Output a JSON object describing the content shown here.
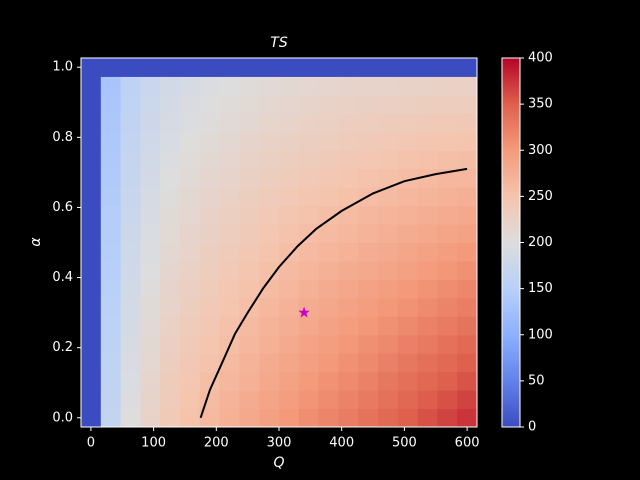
{
  "chart_data": {
    "type": "heatmap",
    "title": "TS",
    "x_label": "Q",
    "y_label": "α",
    "x": [
      0,
      31.58,
      63.16,
      94.74,
      126.32,
      157.89,
      189.47,
      221.05,
      252.63,
      284.21,
      315.79,
      347.37,
      378.95,
      410.53,
      442.11,
      473.68,
      505.26,
      536.84,
      568.42,
      600
    ],
    "y": [
      0,
      0.0526,
      0.1053,
      0.1579,
      0.2105,
      0.2632,
      0.3158,
      0.3684,
      0.4211,
      0.4737,
      0.5263,
      0.5789,
      0.6316,
      0.6842,
      0.7368,
      0.7895,
      0.8421,
      0.8947,
      0.9474,
      1
    ],
    "z": [
      [
        0,
        0,
        0,
        0,
        0,
        0,
        0,
        0,
        0,
        0,
        0,
        0,
        0,
        0,
        0,
        0,
        0,
        0,
        0,
        0
      ],
      [
        165,
        163,
        161,
        160,
        158,
        156,
        154,
        152,
        150,
        148,
        147,
        145,
        143,
        141,
        139,
        137,
        136,
        134,
        132,
        0
      ],
      [
        200,
        198,
        195,
        193,
        191,
        188,
        186,
        184,
        181,
        179,
        177,
        174,
        172,
        169,
        167,
        165,
        162,
        160,
        158,
        0
      ],
      [
        222,
        219,
        217,
        214,
        211,
        208,
        206,
        203,
        200,
        197,
        195,
        192,
        189,
        186,
        184,
        181,
        178,
        175,
        173,
        0
      ],
      [
        240,
        237,
        234,
        231,
        228,
        224,
        221,
        218,
        215,
        212,
        209,
        206,
        203,
        200,
        196,
        193,
        190,
        187,
        184,
        0
      ],
      [
        252,
        249,
        245,
        242,
        238,
        235,
        231,
        228,
        225,
        221,
        218,
        214,
        211,
        208,
        204,
        201,
        197,
        194,
        190,
        0
      ],
      [
        263,
        259,
        256,
        252,
        248,
        244,
        241,
        237,
        233,
        230,
        226,
        222,
        218,
        215,
        211,
        207,
        203,
        200,
        196,
        0
      ],
      [
        273,
        269,
        265,
        261,
        257,
        253,
        249,
        245,
        241,
        237,
        233,
        229,
        225,
        220,
        216,
        212,
        208,
        204,
        200,
        0
      ],
      [
        283,
        279,
        274,
        270,
        266,
        261,
        257,
        252,
        248,
        244,
        239,
        235,
        231,
        226,
        222,
        218,
        213,
        209,
        205,
        0
      ],
      [
        292,
        287,
        283,
        278,
        273,
        269,
        264,
        259,
        255,
        250,
        245,
        241,
        236,
        231,
        227,
        222,
        217,
        213,
        208,
        0
      ],
      [
        301,
        296,
        291,
        286,
        281,
        276,
        271,
        266,
        261,
        256,
        251,
        246,
        241,
        236,
        231,
        226,
        221,
        216,
        211,
        0
      ],
      [
        310,
        305,
        299,
        294,
        289,
        283,
        278,
        273,
        267,
        262,
        257,
        251,
        246,
        241,
        235,
        230,
        225,
        219,
        214,
        0
      ],
      [
        318,
        312,
        307,
        301,
        295,
        290,
        284,
        278,
        273,
        267,
        261,
        256,
        250,
        244,
        239,
        233,
        227,
        222,
        216,
        0
      ],
      [
        326,
        320,
        314,
        308,
        302,
        296,
        290,
        284,
        278,
        272,
        266,
        260,
        254,
        248,
        242,
        236,
        230,
        224,
        218,
        0
      ],
      [
        334,
        328,
        321,
        315,
        309,
        302,
        296,
        290,
        283,
        277,
        270,
        264,
        258,
        251,
        245,
        239,
        232,
        226,
        220,
        0
      ],
      [
        342,
        335,
        329,
        322,
        315,
        308,
        302,
        295,
        288,
        281,
        275,
        268,
        261,
        255,
        248,
        241,
        234,
        228,
        221,
        0
      ],
      [
        350,
        343,
        336,
        329,
        322,
        315,
        307,
        300,
        293,
        286,
        279,
        272,
        265,
        258,
        251,
        244,
        237,
        229,
        222,
        0
      ],
      [
        358,
        351,
        343,
        336,
        328,
        321,
        313,
        306,
        298,
        291,
        283,
        276,
        268,
        261,
        253,
        246,
        238,
        231,
        223,
        0
      ],
      [
        366,
        358,
        350,
        342,
        335,
        327,
        319,
        311,
        303,
        295,
        287,
        280,
        272,
        264,
        256,
        248,
        240,
        232,
        225,
        0
      ],
      [
        374,
        366,
        357,
        349,
        341,
        333,
        324,
        316,
        308,
        300,
        291,
        283,
        275,
        266,
        258,
        250,
        242,
        233,
        225,
        0
      ]
    ],
    "xlim": [
      -15.79,
      615.79
    ],
    "ylim": [
      -0.0263,
      1.0263
    ],
    "xticks": [
      0,
      100,
      200,
      300,
      400,
      500,
      600
    ],
    "yticks": [
      {
        "value": 0,
        "label": "0.0"
      },
      {
        "value": 0.2,
        "label": "0.2"
      },
      {
        "value": 0.4,
        "label": "0.4"
      },
      {
        "value": 0.6,
        "label": "0.6"
      },
      {
        "value": 0.8,
        "label": "0.8"
      },
      {
        "value": 1,
        "label": "1.0"
      }
    ],
    "colormap": [
      "#3b4cc0",
      "#6282ea",
      "#8db0fe",
      "#b8d0f9",
      "#dddddd",
      "#f5c4ad",
      "#f49a7b",
      "#de604d",
      "#b40426"
    ],
    "colorbar": {
      "lim": [
        0,
        400
      ],
      "ticks": [
        0,
        50,
        100,
        150,
        200,
        250,
        300,
        350,
        400
      ]
    },
    "curve": {
      "color": "#000000",
      "x": [
        175,
        190,
        210,
        230,
        250,
        275,
        300,
        330,
        360,
        400,
        450,
        500,
        550,
        600
      ],
      "y": [
        0,
        0.08,
        0.16,
        0.24,
        0.3,
        0.37,
        0.43,
        0.49,
        0.54,
        0.59,
        0.64,
        0.675,
        0.695,
        0.71
      ]
    },
    "marker": {
      "x": 340,
      "y": 0.3,
      "color": "#cc00cc"
    }
  }
}
